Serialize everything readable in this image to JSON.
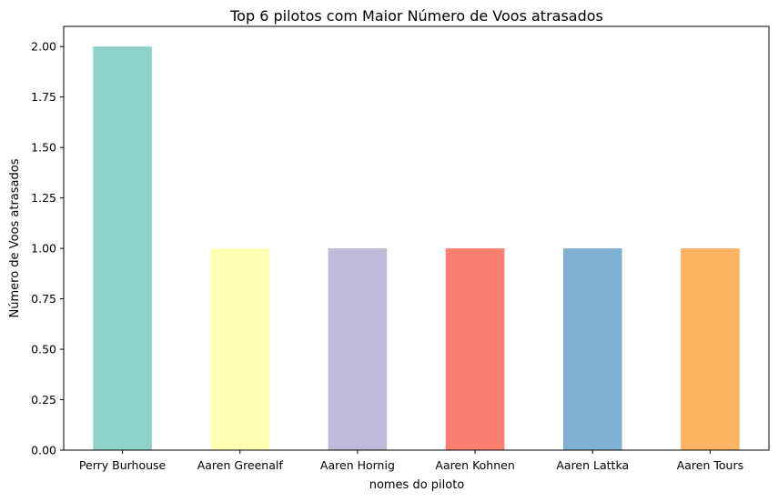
{
  "chart_data": {
    "type": "bar",
    "title": "Top 6 pilotos com Maior Número de Voos atrasados",
    "xlabel": "nomes do piloto",
    "ylabel": "Número de Voos atrasados",
    "categories": [
      "Perry Burhouse",
      "Aaren Greenalf",
      "Aaren Hornig",
      "Aaren Kohnen",
      "Aaren Lattka",
      "Aaren Tours"
    ],
    "values": [
      2,
      1,
      1,
      1,
      1,
      1
    ],
    "colors": [
      "#8dd3c7",
      "#ffffb3",
      "#bebada",
      "#fb8072",
      "#80b1d3",
      "#fdb462"
    ],
    "ylim": [
      0,
      2.1
    ],
    "yticks": [
      "0.00",
      "0.25",
      "0.50",
      "0.75",
      "1.00",
      "1.25",
      "1.50",
      "1.75",
      "2.00"
    ],
    "grid": false,
    "legend": "none"
  }
}
